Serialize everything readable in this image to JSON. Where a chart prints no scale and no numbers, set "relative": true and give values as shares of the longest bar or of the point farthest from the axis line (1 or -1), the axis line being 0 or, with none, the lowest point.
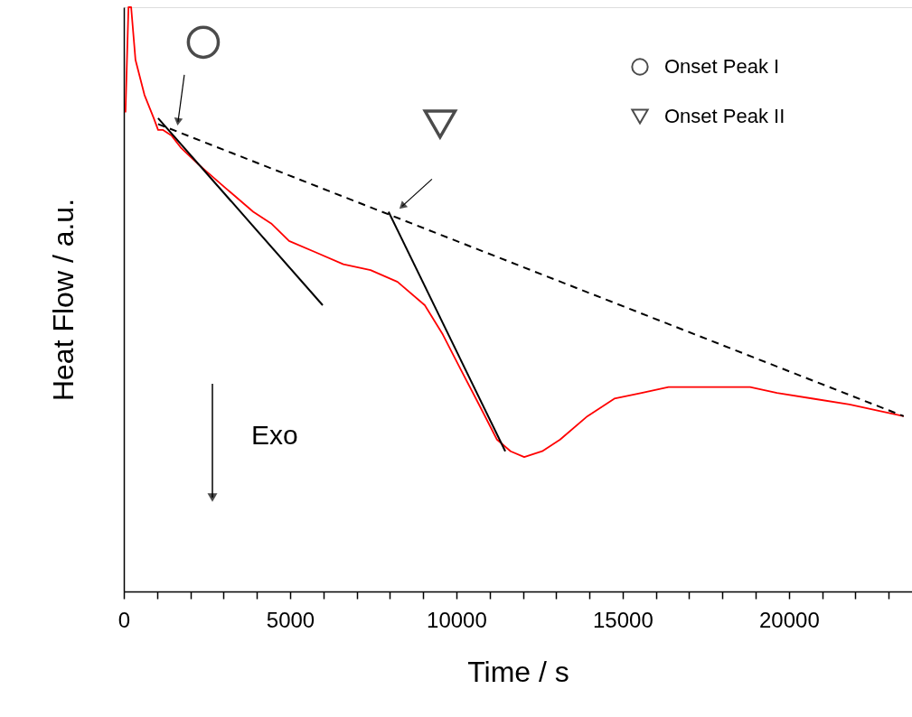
{
  "chart_data": {
    "type": "line",
    "relative": true,
    "xlabel": "Time  /  s",
    "ylabel": "Heat Flow  /  a.u.",
    "xlim": [
      0,
      23700
    ],
    "xticks": [
      0,
      {
        "value": 1000,
        "label": null
      },
      {
        "value": 2000,
        "label": null
      },
      {
        "value": 3000,
        "label": null
      },
      {
        "value": 4000,
        "label": null
      },
      5000,
      {
        "value": 6000,
        "label": null
      },
      {
        "value": 7000,
        "label": null
      },
      {
        "value": 8000,
        "label": null
      },
      {
        "value": 9000,
        "label": null
      },
      10000,
      {
        "value": 11000,
        "label": null
      },
      {
        "value": 12000,
        "label": null
      },
      {
        "value": 13000,
        "label": null
      },
      {
        "value": 14000,
        "label": null
      },
      15000,
      {
        "value": 16000,
        "label": null
      },
      {
        "value": 17000,
        "label": null
      },
      {
        "value": 18000,
        "label": null
      },
      {
        "value": 19000,
        "label": null
      },
      20000,
      {
        "value": 21000,
        "label": null
      },
      {
        "value": 22000,
        "label": null
      },
      {
        "value": 23000,
        "label": null
      }
    ],
    "legend": "top right",
    "grid": false,
    "series": [
      {
        "color": "#ff0000",
        "line_style": "solid",
        "marker": "none",
        "x": [
          50,
          140,
          220,
          350,
          620,
          900,
          1030,
          1170,
          1440,
          1710,
          2260,
          3070,
          3890,
          4430,
          4970,
          5790,
          6600,
          7420,
          8230,
          9050,
          9590,
          10130,
          10680,
          11220,
          11630,
          12040,
          12580,
          13120,
          13940,
          14750,
          15570,
          16380,
          17200,
          18010,
          18830,
          19640,
          20730,
          21820,
          22630,
          23450
        ],
        "values": [
          0.82,
          1.0,
          1.0,
          0.91,
          0.85,
          0.81,
          0.79,
          0.79,
          0.78,
          0.76,
          0.73,
          0.69,
          0.65,
          0.63,
          0.6,
          0.58,
          0.56,
          0.55,
          0.53,
          0.49,
          0.44,
          0.38,
          0.32,
          0.26,
          0.24,
          0.23,
          0.24,
          0.26,
          0.3,
          0.33,
          0.34,
          0.35,
          0.35,
          0.35,
          0.35,
          0.34,
          0.33,
          0.32,
          0.31,
          0.3
        ]
      },
      {
        "color": "#000000",
        "line_style": "solid",
        "marker": "none",
        "x": [
          1030,
          5980
        ],
        "values": [
          0.81,
          0.49
        ]
      },
      {
        "color": "#000000",
        "line_style": "solid",
        "marker": "none",
        "x": [
          7960,
          11470
        ],
        "values": [
          0.65,
          0.24
        ]
      },
      {
        "color": "#000000",
        "line_style": "dashed",
        "marker": "none",
        "x": [
          1030,
          23450
        ],
        "values": [
          0.8,
          0.3
        ]
      },
      {
        "type": "scatter",
        "name": "Onset Peak I",
        "color": "#000000",
        "marker": "circle",
        "x": [
          2390
        ],
        "values": [
          0.94
        ]
      },
      {
        "type": "scatter",
        "name": "Onset Peak II",
        "color": "#000000",
        "marker": "triangle",
        "x": [
          9510
        ],
        "values": [
          0.8
        ]
      }
    ],
    "annotations": [
      "Exo"
    ]
  }
}
